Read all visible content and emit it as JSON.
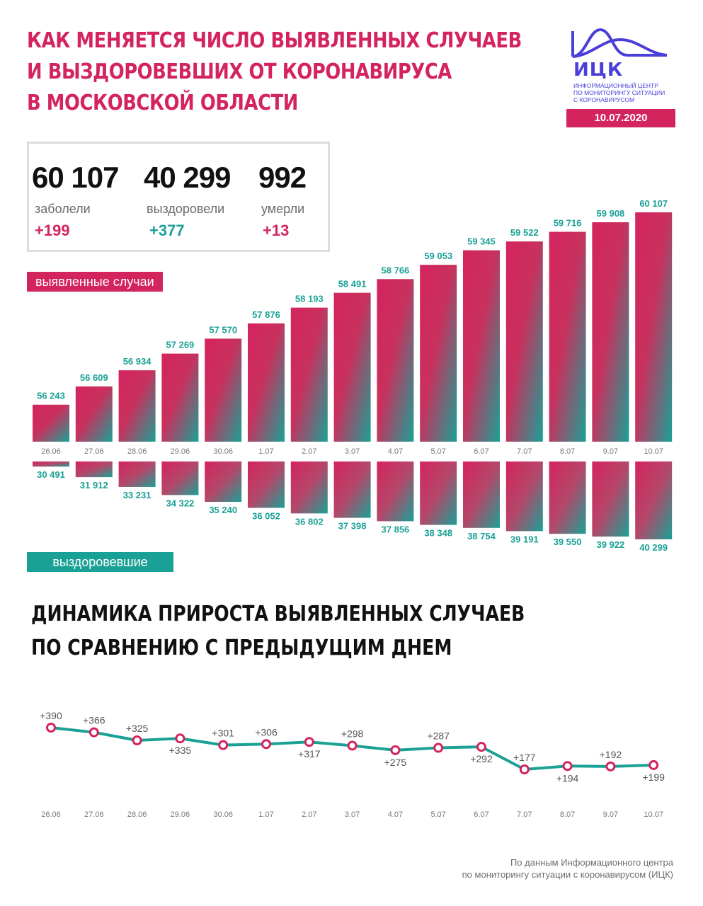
{
  "header": {
    "title_lines": [
      "Как меняется число выявленных случаев",
      "и выздоровевших от коронавируса",
      "в Московской области"
    ]
  },
  "logo": {
    "abbr": "ИЦК",
    "text_lines": [
      "Информационный центр",
      "по мониторингу ситуации",
      "с коронавирусом"
    ],
    "date": "10.07.2020",
    "color": "#4a3fd8"
  },
  "stats": {
    "infected": {
      "value": "60 107",
      "label": "заболели",
      "delta": "+199"
    },
    "recovered": {
      "value": "40 299",
      "label": "выздоровели",
      "delta": "+377"
    },
    "died": {
      "value": "992",
      "label": "умерли",
      "delta": "+13"
    }
  },
  "tags": {
    "cases": "выявленные случаи",
    "recovered": "выздоровевшие"
  },
  "colors": {
    "accent": "#d4245e",
    "teal": "#1aa196",
    "axis_text": "#777777",
    "line": "#1aa196",
    "marker": "#d4245e"
  },
  "chart_data": [
    {
      "type": "bar",
      "categories": [
        "26.06",
        "27.06",
        "28.06",
        "29.06",
        "30.06",
        "1.07",
        "2.07",
        "3.07",
        "4.07",
        "5.07",
        "6.07",
        "7.07",
        "8.07",
        "9.07",
        "10.07"
      ],
      "series": [
        {
          "name": "выявленные случаи",
          "values": [
            56243,
            56609,
            56934,
            57269,
            57570,
            57876,
            58193,
            58491,
            58766,
            59053,
            59345,
            59522,
            59716,
            59908,
            60107
          ],
          "labels": [
            "56 243",
            "56 609",
            "56 934",
            "57 269",
            "57 570",
            "57 876",
            "58 193",
            "58 491",
            "58 766",
            "59 053",
            "59 345",
            "59 522",
            "59 716",
            "59 908",
            "60 107"
          ]
        },
        {
          "name": "выздоровевшие",
          "values": [
            30491,
            31912,
            33231,
            34322,
            35240,
            36052,
            36802,
            37398,
            37856,
            38348,
            38754,
            39191,
            39550,
            39922,
            40299
          ],
          "labels": [
            "30 491",
            "31 912",
            "33 231",
            "34 322",
            "35 240",
            "36 052",
            "36 802",
            "37 398",
            "37 856",
            "38 348",
            "38 754",
            "39 191",
            "39 550",
            "39 922",
            "40 299"
          ]
        }
      ],
      "title": "",
      "xlabel": "",
      "ylabel": "",
      "grid": false
    },
    {
      "type": "line",
      "title": "Динамика прироста выявленных случаев по сравнению с предыдущим днем",
      "title_lines": [
        "Динамика прироста выявленных случаев",
        "по сравнению с предыдущим днем"
      ],
      "categories": [
        "26.06",
        "27.06",
        "28.06",
        "29.06",
        "30.06",
        "1.07",
        "2.07",
        "3.07",
        "4.07",
        "5.07",
        "6.07",
        "7.07",
        "8.07",
        "9.07",
        "10.07"
      ],
      "values": [
        390,
        366,
        325,
        335,
        301,
        306,
        317,
        298,
        275,
        287,
        292,
        177,
        194,
        192,
        199
      ],
      "labels": [
        "+390",
        "+366",
        "+325",
        "+335",
        "+301",
        "+306",
        "+317",
        "+298",
        "+275",
        "+287",
        "+292",
        "+177",
        "+194",
        "+192",
        "+199"
      ],
      "label_positions": [
        "above",
        "above",
        "above",
        "below",
        "above",
        "above",
        "below",
        "above",
        "below",
        "above",
        "below",
        "above",
        "below",
        "above",
        "below"
      ],
      "xlabel": "",
      "ylabel": "",
      "grid": false
    }
  ],
  "footer": {
    "source_lines": [
      "По данным Информационного центра",
      "по мониторингу ситуации с коронавирусом (ИЦК)"
    ]
  }
}
